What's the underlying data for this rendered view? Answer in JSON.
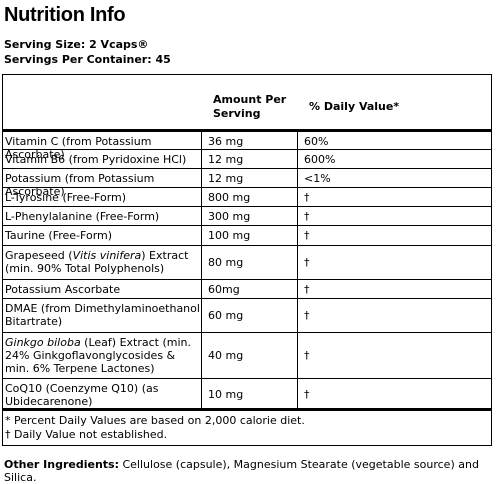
{
  "title": "Nutrition Info",
  "serving_size": "Serving Size: 2 Vcaps®",
  "servings_per_container": "Servings Per Container: 45",
  "header": {
    "amount": "Amount Per Serving",
    "daily_value": "% Daily Value*"
  },
  "rows": [
    {
      "name": "Vitamin C (from Potassium Ascorbate)",
      "amount": "36 mg",
      "dv": "60%"
    },
    {
      "name": "Vitamin B6 (from Pyridoxine HCl)",
      "amount": "12 mg",
      "dv": "600%"
    },
    {
      "name": "Potassium (from Potassium Ascorbate)",
      "amount": "12 mg",
      "dv": "<1%"
    },
    {
      "name": "L-Tyrosine (Free-Form)",
      "amount": "800 mg",
      "dv": "†"
    },
    {
      "name": "L-Phenylalanine (Free-Form)",
      "amount": "300 mg",
      "dv": "†"
    },
    {
      "name": "Taurine (Free-Form)",
      "amount": "100 mg",
      "dv": "†"
    },
    {
      "name_pre": "Grapeseed (",
      "name_it": "Vitis vinifera",
      "name_post": ") Extract (min. 90% Total Polyphenols)",
      "amount": "80 mg",
      "dv": "†"
    },
    {
      "name": "Potassium Ascorbate",
      "amount": "60mg",
      "dv": "†"
    },
    {
      "name": "DMAE (from Dimethylaminoethanol Bitartrate)",
      "amount": "60 mg",
      "dv": "†"
    },
    {
      "name_it": "Ginkgo biloba",
      "name_post": " (Leaf) Extract (min. 24% Ginkgoflavonglycosides & min. 6% Terpene Lactones)",
      "amount": "40 mg",
      "dv": "†"
    },
    {
      "name": "CoQ10 (Coenzyme Q10) (as Ubidecarenone)",
      "amount": "10 mg",
      "dv": "†"
    }
  ],
  "footnotes": {
    "percent": "* Percent Daily Values are based on 2,000 calorie diet.",
    "dagger": "† Daily Value not established."
  },
  "other_ingredients": {
    "label": "Other Ingredients:",
    "text": " Cellulose (capsule), Magnesium Stearate (vegetable source) and Silica."
  }
}
